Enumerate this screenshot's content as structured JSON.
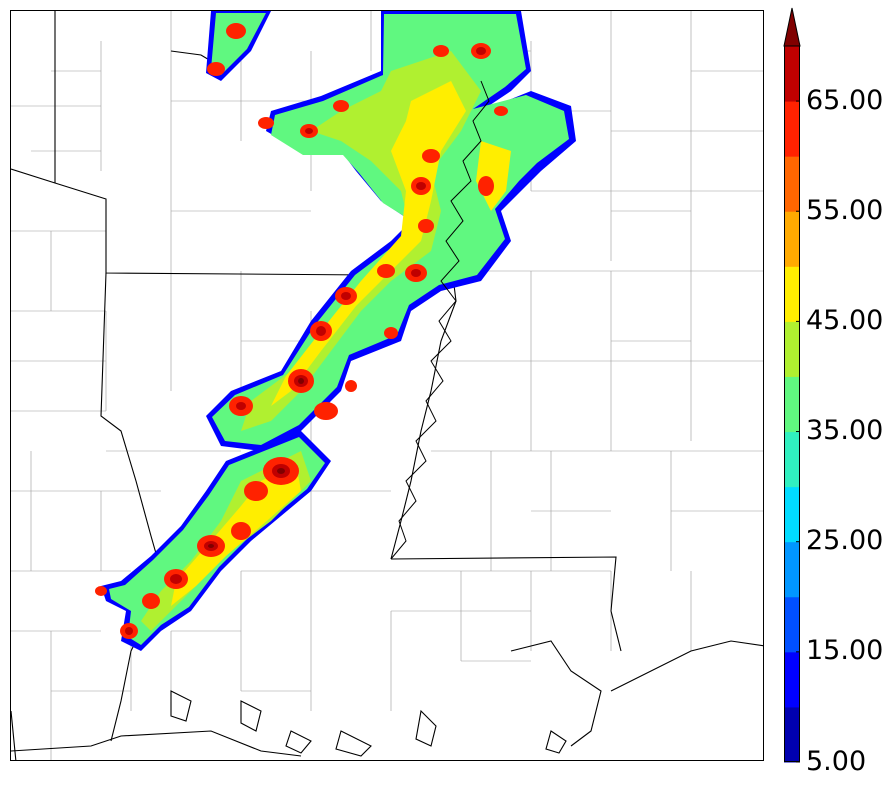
{
  "colorbar": {
    "tick_labels": [
      "5.00",
      "15.00",
      "25.00",
      "35.00",
      "45.00",
      "55.00",
      "65.00"
    ],
    "levels": [
      5,
      10,
      15,
      20,
      25,
      30,
      35,
      40,
      45,
      50,
      55,
      60,
      65,
      70
    ],
    "colors": [
      "#0000b0",
      "#0000ff",
      "#0050ff",
      "#0096ff",
      "#00dcff",
      "#30f0c0",
      "#60f880",
      "#b0f030",
      "#ffee00",
      "#ffaa00",
      "#ff6600",
      "#ff2200",
      "#c00000",
      "#800000"
    ],
    "extend": "max"
  },
  "map": {
    "background": "#ffffff",
    "state_border_color": "#000000",
    "county_border_color": "#999999"
  }
}
